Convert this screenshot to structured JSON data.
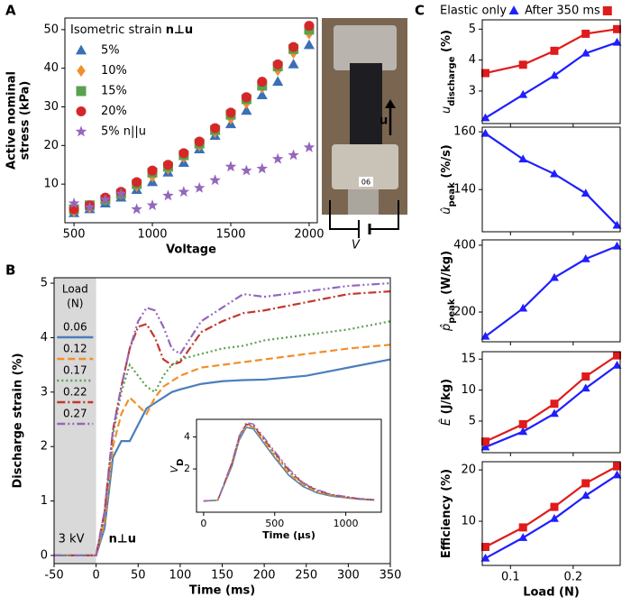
{
  "panel_labels": [
    "A",
    "B",
    "C"
  ],
  "photo": {
    "arrow_label": "u",
    "tag": "06",
    "circuit_label": "V"
  },
  "chart_data": [
    {
      "type": "scatter",
      "xlabel": "Voltage",
      "ylabel": [
        "Active nominal",
        "stress (kPa)"
      ],
      "xlim": [
        442,
        2052
      ],
      "ylim": [
        0,
        53
      ],
      "xticks": [
        500,
        1000,
        1500,
        2000
      ],
      "yticks": [
        10,
        20,
        30,
        40,
        50
      ],
      "legend": "upper left",
      "legend_title": [
        "Isometric strain ",
        "n⊥u"
      ],
      "x": [
        500,
        600,
        700,
        800,
        900,
        1000,
        1100,
        1200,
        1300,
        1400,
        1500,
        1600,
        1700,
        1800,
        1900,
        2000
      ],
      "series": [
        {
          "name": "5%",
          "color": "#3b6fb6",
          "marker": "triangle",
          "values": [
            2.5,
            3.5,
            5,
            6.5,
            8.5,
            10.5,
            13,
            15.5,
            19,
            22.5,
            25.5,
            29,
            33,
            36.5,
            41,
            46
          ]
        },
        {
          "name": "10%",
          "color": "#f28e2b",
          "marker": "diamond",
          "values": [
            3,
            4,
            6,
            7.5,
            9.5,
            12,
            14,
            17,
            20,
            23.5,
            27,
            31,
            35,
            39.5,
            44,
            49
          ]
        },
        {
          "name": "15%",
          "color": "#59a14f",
          "marker": "square",
          "values": [
            3.5,
            4.5,
            6,
            7.5,
            10,
            13,
            14.5,
            17.5,
            20.5,
            24,
            28,
            32,
            35.5,
            40.5,
            45,
            50
          ]
        },
        {
          "name": "20%",
          "color": "#d62728",
          "marker": "circle",
          "values": [
            3.5,
            4.5,
            6.5,
            8,
            10.5,
            13.5,
            15,
            18,
            21,
            24.5,
            28.5,
            32.5,
            36.5,
            41,
            45.5,
            51
          ]
        },
        {
          "name": "5% n||u",
          "color": "#9467bd",
          "marker": "star",
          "values": [
            5,
            4,
            6,
            7.5,
            3.5,
            4.5,
            7,
            8,
            9,
            11,
            14.5,
            13.5,
            14,
            16.5,
            17.5,
            19.5
          ]
        }
      ]
    },
    {
      "type": "line",
      "xlabel": "Time (ms)",
      "ylabel": [
        "Discharge strain (%)"
      ],
      "xlim": [
        -50,
        350
      ],
      "ylim": [
        -0.15,
        5.1
      ],
      "xticks": [
        -50,
        0,
        50,
        100,
        150,
        200,
        250,
        300,
        350
      ],
      "yticks": [
        0,
        1,
        2,
        3,
        4,
        5
      ],
      "shaded_xrange": [
        -50,
        0
      ],
      "shade_color": "#d9d9d9",
      "legend": "left",
      "legend_title": [
        "Load",
        "(N)"
      ],
      "annotations": [
        {
          "text": "3 kV",
          "x": -45,
          "y": 0.3
        },
        {
          "text": "n⊥u",
          "x": 15,
          "y": 0.3
        }
      ],
      "x": [
        -50,
        0,
        10,
        20,
        30,
        40,
        50,
        60,
        70,
        80,
        90,
        100,
        125,
        150,
        175,
        200,
        250,
        300,
        350
      ],
      "series": [
        {
          "name": "0.06",
          "color": "#4a7ebb",
          "dash": "solid",
          "values": [
            0,
            0,
            0.5,
            1.8,
            2.1,
            2.1,
            2.4,
            2.7,
            2.8,
            2.9,
            3.0,
            3.05,
            3.15,
            3.2,
            3.22,
            3.23,
            3.3,
            3.45,
            3.6
          ]
        },
        {
          "name": "0.12",
          "color": "#f28e2b",
          "dash": "dashed",
          "values": [
            0,
            0,
            0.6,
            2.0,
            2.6,
            2.9,
            2.75,
            2.6,
            2.9,
            3.1,
            3.2,
            3.3,
            3.45,
            3.5,
            3.55,
            3.6,
            3.7,
            3.8,
            3.87
          ]
        },
        {
          "name": "0.17",
          "color": "#59a14f",
          "dash": "dotted",
          "values": [
            0,
            0,
            0.7,
            2.2,
            3.0,
            3.5,
            3.3,
            3.1,
            3.0,
            3.3,
            3.5,
            3.6,
            3.7,
            3.8,
            3.85,
            3.95,
            4.05,
            4.15,
            4.3
          ]
        },
        {
          "name": "0.22",
          "color": "#c0392b",
          "dash": "dashdot",
          "values": [
            0,
            0,
            0.8,
            2.3,
            3.1,
            3.8,
            4.2,
            4.25,
            4.0,
            3.6,
            3.5,
            3.55,
            4.1,
            4.3,
            4.45,
            4.5,
            4.65,
            4.8,
            4.85
          ]
        },
        {
          "name": "0.27",
          "color": "#9467bd",
          "dash": "dashdotdot",
          "values": [
            0,
            0,
            0.8,
            2.3,
            3.1,
            3.8,
            4.3,
            4.55,
            4.5,
            4.2,
            3.8,
            3.7,
            4.3,
            4.55,
            4.8,
            4.75,
            4.85,
            4.95,
            5.0
          ]
        }
      ]
    },
    {
      "type": "line",
      "xlabel": "Time (µs)",
      "ylabel_main": "V",
      "ylabel_sub": "D",
      "xlim": [
        -50,
        1250
      ],
      "ylim": [
        -0.7,
        5.1
      ],
      "xticks": [
        0,
        500,
        1000
      ],
      "yticks": [
        2,
        4
      ],
      "x": [
        0,
        100,
        200,
        250,
        300,
        350,
        400,
        500,
        600,
        700,
        800,
        900,
        1000,
        1100,
        1200
      ],
      "series": [
        {
          "color": "#4a7ebb",
          "dash": "solid",
          "values": [
            0,
            0.05,
            2.2,
            3.8,
            4.6,
            4.5,
            3.9,
            2.7,
            1.6,
            0.9,
            0.5,
            0.3,
            0.2,
            0.1,
            0.05
          ]
        },
        {
          "color": "#f28e2b",
          "dash": "dashed",
          "values": [
            0,
            0.05,
            2.3,
            3.9,
            4.7,
            4.6,
            4.0,
            2.8,
            1.7,
            1.0,
            0.55,
            0.33,
            0.22,
            0.12,
            0.06
          ]
        },
        {
          "color": "#59a14f",
          "dash": "dotted",
          "values": [
            0,
            0.05,
            2.35,
            3.95,
            4.75,
            4.65,
            4.1,
            2.9,
            1.8,
            1.05,
            0.6,
            0.36,
            0.24,
            0.13,
            0.07
          ]
        },
        {
          "color": "#c0392b",
          "dash": "dashdot",
          "values": [
            0,
            0.05,
            2.4,
            4.0,
            4.8,
            4.7,
            4.15,
            3.0,
            1.9,
            1.1,
            0.65,
            0.39,
            0.26,
            0.14,
            0.08
          ]
        },
        {
          "color": "#9467bd",
          "dash": "dashdotdot",
          "values": [
            0,
            0.05,
            2.45,
            4.05,
            4.9,
            4.8,
            4.25,
            3.1,
            2.0,
            1.15,
            0.7,
            0.42,
            0.28,
            0.15,
            0.09
          ]
        }
      ]
    },
    {
      "type": "line",
      "ylabel_main": "u",
      "ylabel_sub": "discharge",
      "ylabel_unit": " (%)",
      "xlim": [
        0.055,
        0.275
      ],
      "ylim": [
        1.95,
        5.3
      ],
      "xticks": [
        0.1,
        0.2
      ],
      "xtick_labels": false,
      "yticks": [
        3,
        4,
        5
      ],
      "legend": "top",
      "x": [
        0.06,
        0.12,
        0.17,
        0.22,
        0.27
      ],
      "series": [
        {
          "name": "Elastic only",
          "color": "#1f1fff",
          "marker": "triangle",
          "values": [
            2.13,
            2.88,
            3.5,
            4.22,
            4.57
          ]
        },
        {
          "name": "After 350 ms",
          "color": "#e01b1b",
          "marker": "square",
          "values": [
            3.58,
            3.85,
            4.3,
            4.85,
            5.0
          ]
        }
      ]
    },
    {
      "type": "line",
      "ylabel_main": "û",
      "ylabel_sub": "peak",
      "ylabel_unit": " (%/s)",
      "xlim": [
        0.055,
        0.275
      ],
      "ylim": [
        125.4,
        161.6
      ],
      "xticks": [
        0.1,
        0.2
      ],
      "xtick_labels": false,
      "yticks": [
        140,
        160
      ],
      "x": [
        0.06,
        0.12,
        0.17,
        0.22,
        0.27
      ],
      "series": [
        {
          "color": "#1f1fff",
          "marker": "triangle",
          "values": [
            159.4,
            150.5,
            145.4,
            138.7,
            127.6
          ]
        }
      ]
    },
    {
      "type": "line",
      "ylabel_main": "p̂",
      "ylabel_sub": "peak",
      "ylabel_unit": " (W/kg)",
      "xlim": [
        0.055,
        0.275
      ],
      "ylim": [
        111,
        416
      ],
      "xticks": [
        0.1,
        0.2
      ],
      "xtick_labels": false,
      "yticks": [
        200,
        400
      ],
      "x": [
        0.06,
        0.12,
        0.17,
        0.22,
        0.27
      ],
      "series": [
        {
          "color": "#1f1fff",
          "marker": "triangle",
          "values": [
            127,
            211,
            303,
            359,
            397
          ]
        }
      ]
    },
    {
      "type": "line",
      "ylabel_main": "Ê",
      "ylabel_unit": " (J/kg)",
      "xlim": [
        0.055,
        0.275
      ],
      "ylim": [
        -0.1,
        16.2
      ],
      "xticks": [
        0.1,
        0.2
      ],
      "xtick_labels": false,
      "yticks": [
        5,
        10,
        15
      ],
      "x": [
        0.06,
        0.12,
        0.17,
        0.22,
        0.27
      ],
      "series": [
        {
          "color": "#1f1fff",
          "marker": "triangle",
          "values": [
            0.8,
            3.3,
            6.2,
            10.3,
            14
          ]
        },
        {
          "color": "#e01b1b",
          "marker": "square",
          "values": [
            1.7,
            4.5,
            7.8,
            12.2,
            15.6
          ]
        }
      ]
    },
    {
      "type": "line",
      "ylabel_unit": "Efficiency  (%)",
      "xlabel": "Load (N)",
      "xlim": [
        0.055,
        0.275
      ],
      "ylim": [
        1.4,
        21.6
      ],
      "xticks": [
        0.1,
        0.2
      ],
      "yticks": [
        10,
        20
      ],
      "x": [
        0.06,
        0.12,
        0.17,
        0.22,
        0.27
      ],
      "series": [
        {
          "color": "#1f1fff",
          "marker": "triangle",
          "values": [
            2.8,
            6.8,
            10.5,
            15,
            19
          ]
        },
        {
          "color": "#e01b1b",
          "marker": "square",
          "values": [
            5,
            8.8,
            12.8,
            17.4,
            20.7
          ]
        }
      ]
    }
  ]
}
